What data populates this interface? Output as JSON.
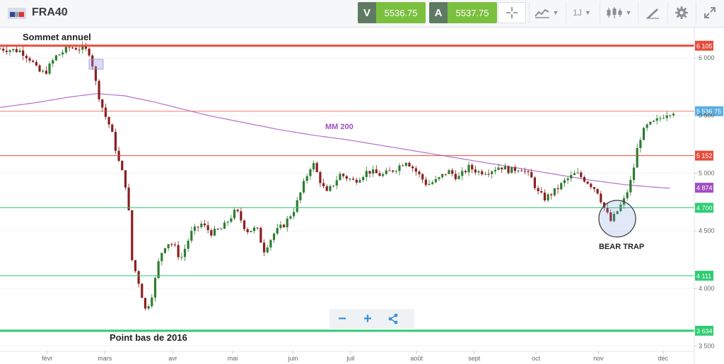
{
  "header": {
    "symbol": "FRA40",
    "sell": {
      "key": "V",
      "value": "5536.75"
    },
    "buy": {
      "key": "A",
      "value": "5537.75"
    },
    "timeframe": "1J",
    "icons": [
      "crosshair-icon",
      "chart-type-icon",
      "timeframe-icon",
      "candlestick-icon",
      "drawing-tools-icon",
      "settings-gear-icon",
      "fullscreen-icon"
    ]
  },
  "annotations": {
    "sommet": "Sommet annuel",
    "point_bas": "Point bas de 2016",
    "mm200": "MM 200",
    "bear_trap": "BEAR TRAP"
  },
  "zoom": {
    "minus": "−",
    "plus": "+"
  },
  "colors": {
    "red": "#e74c3c",
    "green": "#2ecc71",
    "purple": "#a04fc0",
    "blue": "#5aaee0",
    "up": "#2e7d32",
    "down": "#8b1f1f"
  },
  "chart_data": {
    "type": "candlestick",
    "ylim": [
      3480,
      6220
    ],
    "y_ticks": [
      "6 000",
      "5 500",
      "5 000",
      "4 500",
      "4 000",
      "3 500"
    ],
    "x_ticks": [
      "févr",
      "mars",
      "avr",
      "mai",
      "juin",
      "juil",
      "août",
      "sept",
      "oct",
      "nov",
      "déc"
    ],
    "price_levels": [
      {
        "label": "6 105",
        "value": 6105,
        "color": "#e74c3c",
        "style": "thick"
      },
      {
        "label": "5 536,75",
        "value": 5537,
        "color": "#5aaee0",
        "style": "thin-red"
      },
      {
        "label": "5 152",
        "value": 5152,
        "color": "#e74c3c",
        "style": "thin"
      },
      {
        "label": "4 874",
        "value": 4874,
        "color": "#a04fc0",
        "style": "none"
      },
      {
        "label": "4 700",
        "value": 4700,
        "color": "#2ecc71",
        "style": "thin"
      },
      {
        "label": "4 111",
        "value": 4111,
        "color": "#2ecc71",
        "style": "thin"
      },
      {
        "label": "3 634",
        "value": 3634,
        "color": "#2ecc71",
        "style": "thick"
      }
    ],
    "close_path": [
      [
        0.0,
        6080
      ],
      [
        0.03,
        6060
      ],
      [
        0.045,
        5980
      ],
      [
        0.055,
        5880
      ],
      [
        0.065,
        5870
      ],
      [
        0.08,
        6010
      ],
      [
        0.1,
        6090
      ],
      [
        0.12,
        6080
      ],
      [
        0.13,
        6040
      ],
      [
        0.14,
        5720
      ],
      [
        0.15,
        5520
      ],
      [
        0.16,
        5380
      ],
      [
        0.17,
        5120
      ],
      [
        0.18,
        4930
      ],
      [
        0.185,
        4700
      ],
      [
        0.19,
        4250
      ],
      [
        0.2,
        4050
      ],
      [
        0.21,
        3800
      ],
      [
        0.22,
        3970
      ],
      [
        0.23,
        4280
      ],
      [
        0.24,
        4400
      ],
      [
        0.25,
        4380
      ],
      [
        0.26,
        4250
      ],
      [
        0.275,
        4480
      ],
      [
        0.29,
        4560
      ],
      [
        0.305,
        4480
      ],
      [
        0.32,
        4520
      ],
      [
        0.34,
        4680
      ],
      [
        0.355,
        4500
      ],
      [
        0.37,
        4520
      ],
      [
        0.38,
        4330
      ],
      [
        0.395,
        4480
      ],
      [
        0.41,
        4560
      ],
      [
        0.425,
        4700
      ],
      [
        0.44,
        4950
      ],
      [
        0.45,
        5100
      ],
      [
        0.46,
        4950
      ],
      [
        0.47,
        4820
      ],
      [
        0.49,
        4990
      ],
      [
        0.51,
        4930
      ],
      [
        0.53,
        5020
      ],
      [
        0.55,
        4980
      ],
      [
        0.57,
        5040
      ],
      [
        0.585,
        5110
      ],
      [
        0.6,
        5010
      ],
      [
        0.615,
        4900
      ],
      [
        0.63,
        4940
      ],
      [
        0.645,
        5020
      ],
      [
        0.66,
        4960
      ],
      [
        0.675,
        5050
      ],
      [
        0.69,
        5010
      ],
      [
        0.705,
        5020
      ],
      [
        0.72,
        5060
      ],
      [
        0.735,
        5020
      ],
      [
        0.75,
        5050
      ],
      [
        0.765,
        4960
      ],
      [
        0.775,
        4830
      ],
      [
        0.785,
        4780
      ],
      [
        0.8,
        4850
      ],
      [
        0.815,
        4940
      ],
      [
        0.83,
        5000
      ],
      [
        0.845,
        4930
      ],
      [
        0.86,
        4850
      ],
      [
        0.87,
        4700
      ],
      [
        0.88,
        4580
      ],
      [
        0.89,
        4680
      ],
      [
        0.9,
        4780
      ],
      [
        0.91,
        4960
      ],
      [
        0.92,
        5280
      ],
      [
        0.93,
        5400
      ],
      [
        0.945,
        5450
      ],
      [
        0.96,
        5520
      ],
      [
        0.97,
        5537
      ]
    ],
    "ma200_path": [
      [
        0.0,
        5570
      ],
      [
        0.05,
        5610
      ],
      [
        0.1,
        5660
      ],
      [
        0.14,
        5690
      ],
      [
        0.18,
        5670
      ],
      [
        0.22,
        5620
      ],
      [
        0.26,
        5560
      ],
      [
        0.3,
        5500
      ],
      [
        0.35,
        5440
      ],
      [
        0.4,
        5380
      ],
      [
        0.45,
        5330
      ],
      [
        0.5,
        5290
      ],
      [
        0.55,
        5240
      ],
      [
        0.6,
        5190
      ],
      [
        0.65,
        5140
      ],
      [
        0.7,
        5090
      ],
      [
        0.75,
        5040
      ],
      [
        0.8,
        4990
      ],
      [
        0.85,
        4940
      ],
      [
        0.9,
        4900
      ],
      [
        0.95,
        4875
      ],
      [
        0.97,
        4868
      ]
    ]
  }
}
